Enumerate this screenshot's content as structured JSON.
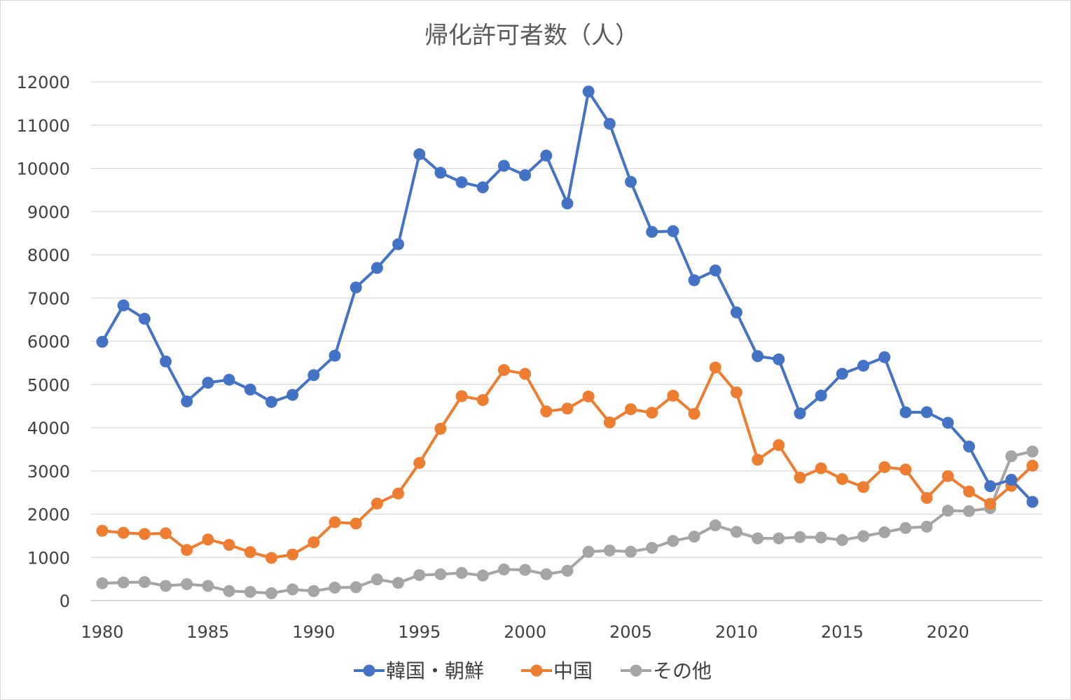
{
  "chart_data": {
    "type": "line",
    "title": "帰化許可者数（人）",
    "xlabel": "",
    "ylabel": "",
    "x": [
      1980,
      1981,
      1982,
      1983,
      1984,
      1985,
      1986,
      1987,
      1988,
      1989,
      1990,
      1991,
      1992,
      1993,
      1994,
      1995,
      1996,
      1997,
      1998,
      1999,
      2000,
      2001,
      2002,
      2003,
      2004,
      2005,
      2006,
      2007,
      2008,
      2009,
      2010,
      2011,
      2012,
      2013,
      2014,
      2015,
      2016,
      2017,
      2018,
      2019,
      2020,
      2021,
      2022,
      2023,
      2024
    ],
    "xlim": [
      1980,
      2024
    ],
    "xticks": [
      "1980",
      "1985",
      "1990",
      "1995",
      "2000",
      "2005",
      "2010",
      "2015",
      "2020"
    ],
    "ylim": [
      0,
      12000
    ],
    "yticks": [
      "0",
      "1000",
      "2000",
      "3000",
      "4000",
      "5000",
      "6000",
      "7000",
      "8000",
      "9000",
      "10000",
      "11000",
      "12000"
    ],
    "grid": true,
    "legend": "bottom",
    "series": [
      {
        "name": "韓国・朝鮮",
        "color": "#4472c4",
        "values": [
          5987,
          6829,
          6521,
          5532,
          4608,
          5040,
          5110,
          4882,
          4595,
          4759,
          5216,
          5665,
          7244,
          7697,
          8244,
          10327,
          9898,
          9678,
          9561,
          10059,
          9842,
          10295,
          9188,
          11778,
          11031,
          9689,
          8531,
          8546,
          7412,
          7637,
          6668,
          5656,
          5581,
          4331,
          4744,
          5247,
          5434,
          5631,
          4357,
          4359,
          4113,
          3564,
          2648,
          2796,
          2283
        ]
      },
      {
        "name": "中国",
        "color": "#ed7d31",
        "values": [
          1616,
          1569,
          1540,
          1557,
          1171,
          1413,
          1290,
          1121,
          988,
          1066,
          1349,
          1814,
          1783,
          2244,
          2478,
          3184,
          3976,
          4729,
          4639,
          5335,
          5245,
          4377,
          4442,
          4722,
          4122,
          4427,
          4347,
          4740,
          4322,
          5392,
          4816,
          3259,
          3598,
          2845,
          3060,
          2813,
          2627,
          3088,
          3033,
          2374,
          2881,
          2522,
          2238,
          2656,
          3122
        ]
      },
      {
        "name": "その他",
        "color": "#a5a5a5",
        "values": [
          400,
          420,
          430,
          340,
          380,
          340,
          220,
          200,
          170,
          260,
          220,
          300,
          310,
          490,
          410,
          590,
          610,
          640,
          580,
          720,
          710,
          610,
          690,
          1130,
          1160,
          1130,
          1220,
          1380,
          1480,
          1740,
          1590,
          1440,
          1440,
          1470,
          1460,
          1400,
          1490,
          1580,
          1680,
          1710,
          2080,
          2070,
          2140,
          3340,
          3450
        ]
      }
    ]
  }
}
